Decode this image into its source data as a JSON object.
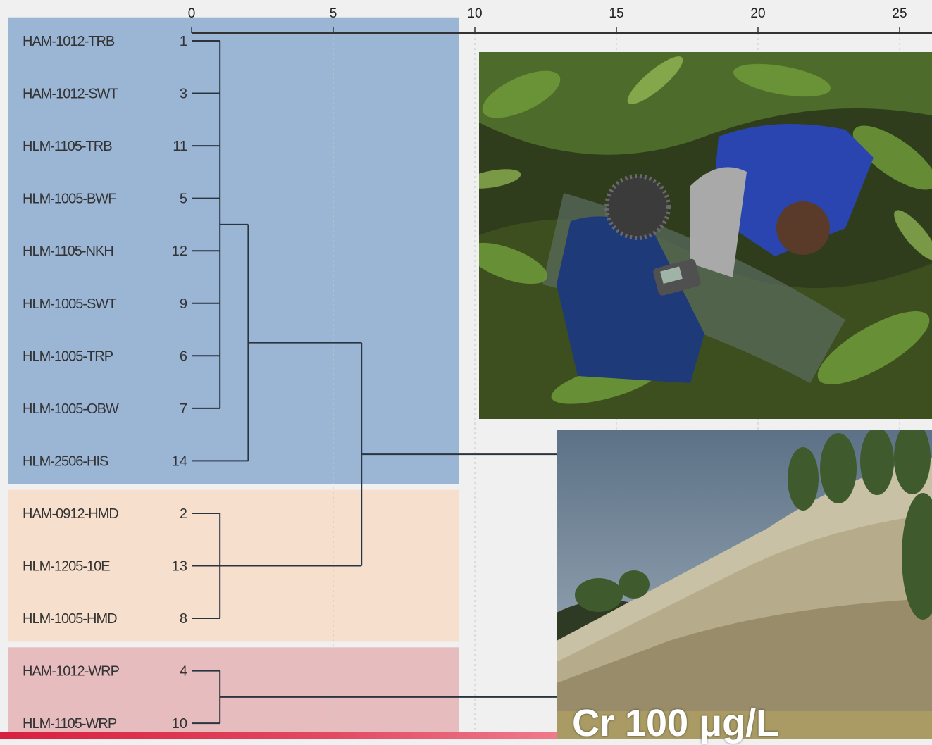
{
  "chart_data": {
    "type": "dendrogram",
    "x_ticks": [
      0,
      5,
      10,
      15,
      20,
      25
    ],
    "xlim": [
      0,
      26
    ],
    "leaves": [
      {
        "name": "HAM-1012-TRB",
        "case": "1",
        "cluster": "blue"
      },
      {
        "name": "HAM-1012-SWT",
        "case": "3",
        "cluster": "blue"
      },
      {
        "name": "HLM-1105-TRB",
        "case": "11",
        "cluster": "blue"
      },
      {
        "name": "HLM-1005-BWF",
        "case": "5",
        "cluster": "blue"
      },
      {
        "name": "HLM-1105-NKH",
        "case": "12",
        "cluster": "blue"
      },
      {
        "name": "HLM-1005-SWT",
        "case": "9",
        "cluster": "blue"
      },
      {
        "name": "HLM-1005-TRP",
        "case": "6",
        "cluster": "blue"
      },
      {
        "name": "HLM-1005-OBW",
        "case": "7",
        "cluster": "blue"
      },
      {
        "name": "HLM-2506-HIS",
        "case": "14",
        "cluster": "blue"
      },
      {
        "name": "HAM-0912-HMD",
        "case": "2",
        "cluster": "orange"
      },
      {
        "name": "HLM-1205-10E",
        "case": "13",
        "cluster": "orange"
      },
      {
        "name": "HLM-1005-HMD",
        "case": "8",
        "cluster": "orange"
      },
      {
        "name": "HAM-1012-WRP",
        "case": "4",
        "cluster": "red"
      },
      {
        "name": "HLM-1105-WRP",
        "case": "10",
        "cluster": "red"
      }
    ],
    "merges": [
      {
        "members": [
          0,
          1,
          2,
          3,
          4,
          5,
          6,
          7
        ],
        "height": 1
      },
      {
        "members": [
          0,
          1,
          2,
          3,
          4,
          5,
          6,
          7,
          8
        ],
        "height": 2
      },
      {
        "members": [
          9,
          10,
          11
        ],
        "height": 1
      },
      {
        "members": [
          0,
          1,
          2,
          3,
          4,
          5,
          6,
          7,
          8,
          9,
          10,
          11
        ],
        "height": 6
      },
      {
        "members": [
          0,
          1,
          2,
          3,
          4,
          5,
          6,
          7,
          8,
          9,
          10,
          11
        ],
        "height": 26,
        "extends_off_chart": true
      },
      {
        "members": [
          12,
          13
        ],
        "height": 1
      },
      {
        "members": [
          12,
          13
        ],
        "height": 26,
        "extends_off_chart": true
      }
    ],
    "cluster_colors": {
      "blue": "#9bb5d4",
      "orange": "#f6dfcc",
      "red": "#e6bcbf"
    },
    "grid": true,
    "title": "",
    "xlabel": "",
    "ylabel": ""
  },
  "photos": [
    {
      "icon": "field-sampling-photo-icon"
    },
    {
      "icon": "mine-dump-slope-photo-icon"
    }
  ],
  "caption": {
    "text": "Cr 100 μg/L",
    "color": "#ffffff"
  },
  "accent": "#d8203f"
}
